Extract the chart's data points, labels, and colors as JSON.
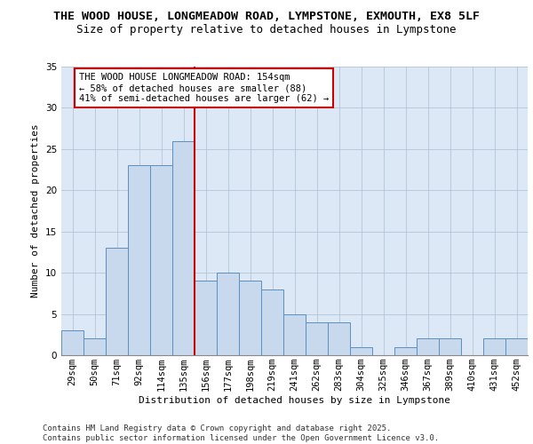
{
  "title_line1": "THE WOOD HOUSE, LONGMEADOW ROAD, LYMPSTONE, EXMOUTH, EX8 5LF",
  "title_line2": "Size of property relative to detached houses in Lympstone",
  "xlabel": "Distribution of detached houses by size in Lympstone",
  "ylabel": "Number of detached properties",
  "categories": [
    "29sqm",
    "50sqm",
    "71sqm",
    "92sqm",
    "114sqm",
    "135sqm",
    "156sqm",
    "177sqm",
    "198sqm",
    "219sqm",
    "241sqm",
    "262sqm",
    "283sqm",
    "304sqm",
    "325sqm",
    "346sqm",
    "367sqm",
    "389sqm",
    "410sqm",
    "431sqm",
    "452sqm"
  ],
  "values": [
    3,
    2,
    13,
    23,
    23,
    26,
    9,
    10,
    9,
    8,
    5,
    4,
    4,
    1,
    0,
    1,
    2,
    2,
    0,
    2,
    2
  ],
  "bar_color": "#c8d9ed",
  "bar_edge_color": "#5a8fc0",
  "vline_x_index": 6,
  "vline_color": "#cc0000",
  "annotation_text": "THE WOOD HOUSE LONGMEADOW ROAD: 154sqm\n← 58% of detached houses are smaller (88)\n41% of semi-detached houses are larger (62) →",
  "annotation_box_color": "#cc0000",
  "ylim": [
    0,
    35
  ],
  "yticks": [
    0,
    5,
    10,
    15,
    20,
    25,
    30,
    35
  ],
  "background_color": "#dce8f5",
  "footer_text": "Contains HM Land Registry data © Crown copyright and database right 2025.\nContains public sector information licensed under the Open Government Licence v3.0.",
  "title_fontsize": 9.5,
  "subtitle_fontsize": 9,
  "axis_label_fontsize": 8,
  "tick_fontsize": 7.5,
  "annotation_fontsize": 7.5,
  "footer_fontsize": 6.5
}
